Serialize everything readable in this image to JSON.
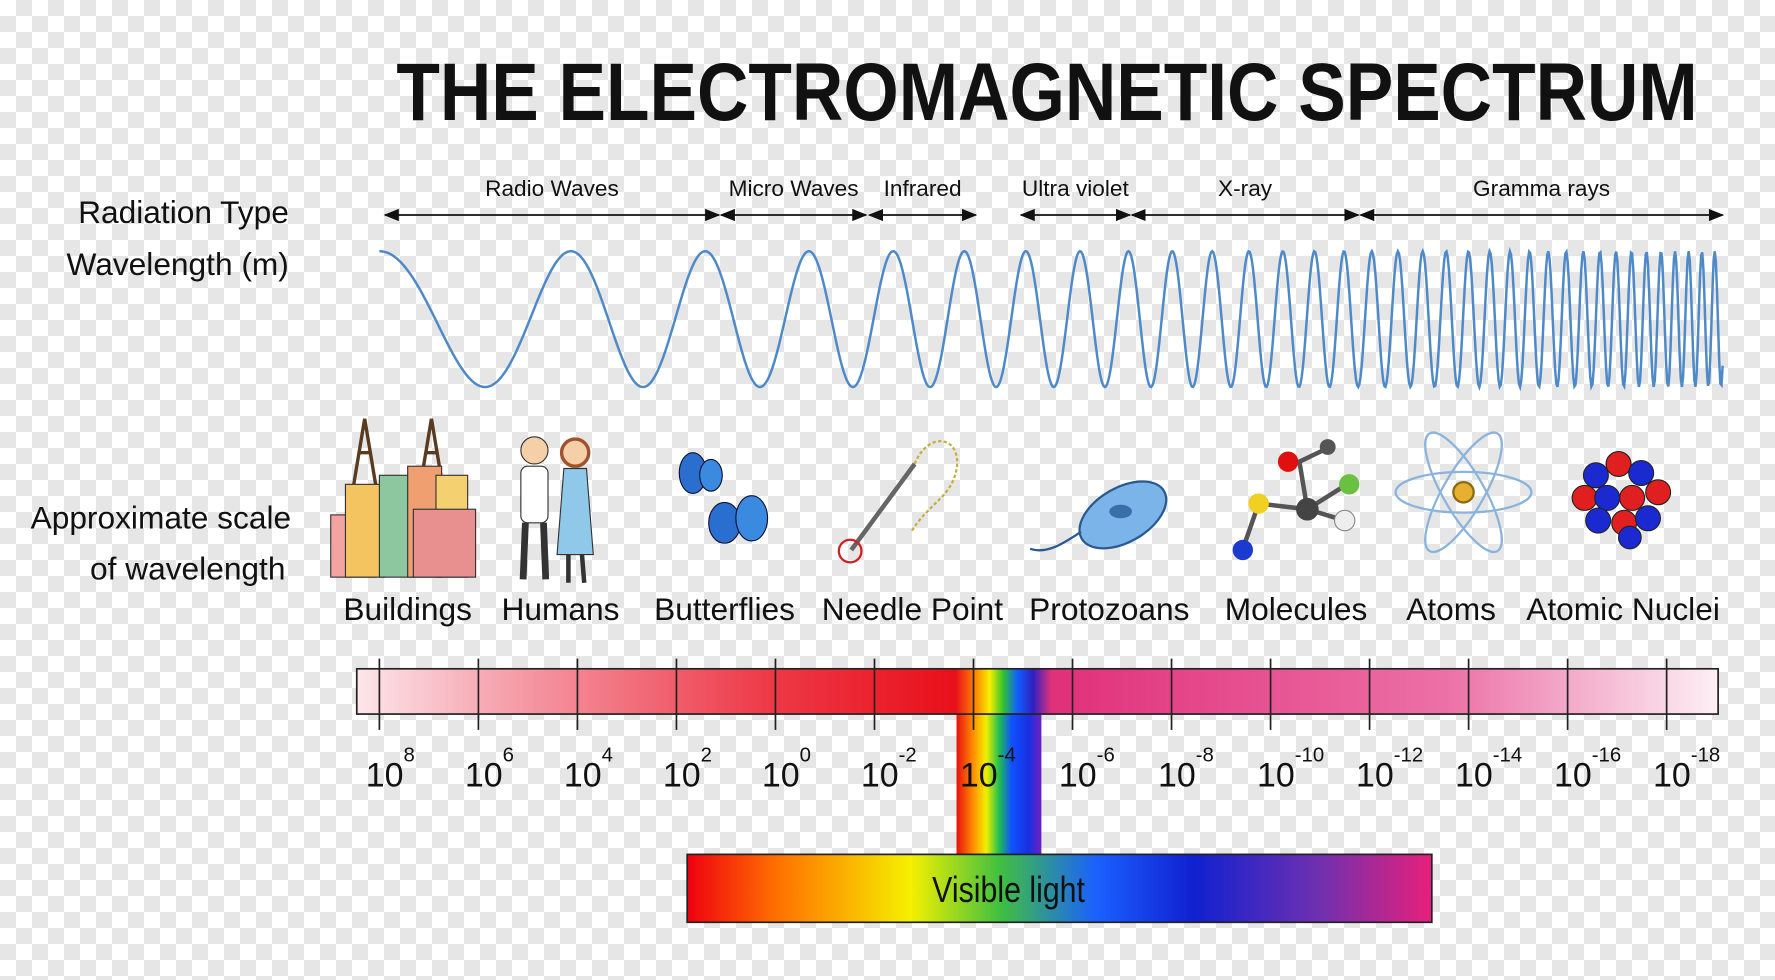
{
  "title": "THE ELECTROMAGNETIC SPECTRUM",
  "labels": {
    "radiation_type": "Radiation Type",
    "wavelength": "Wavelength (m)",
    "scale_line1": "Approximate scale",
    "scale_line2": "of wavelength"
  },
  "radiation_types": [
    "Radio Waves",
    "Micro Waves",
    "Infrared",
    "Ultra violet",
    "X-ray",
    "Gramma rays"
  ],
  "objects": [
    "Buildings",
    "Humans",
    "Butterflies",
    "Needle Point",
    "Protozoans",
    "Molecules",
    "Atoms",
    "Atomic Nuclei"
  ],
  "ticks": [
    {
      "base": "10",
      "exponent": "8"
    },
    {
      "base": "10",
      "exponent": "6"
    },
    {
      "base": "10",
      "exponent": "4"
    },
    {
      "base": "10",
      "exponent": "2"
    },
    {
      "base": "10",
      "exponent": "0"
    },
    {
      "base": "10",
      "exponent": "-2"
    },
    {
      "base": "10",
      "exponent": "-4"
    },
    {
      "base": "10",
      "exponent": "-6"
    },
    {
      "base": "10",
      "exponent": "-8"
    },
    {
      "base": "10",
      "exponent": "-10"
    },
    {
      "base": "10",
      "exponent": "-12"
    },
    {
      "base": "10",
      "exponent": "-14"
    },
    {
      "base": "10",
      "exponent": "-16"
    },
    {
      "base": "10",
      "exponent": "-18"
    }
  ],
  "visible_light": "Visible light"
}
